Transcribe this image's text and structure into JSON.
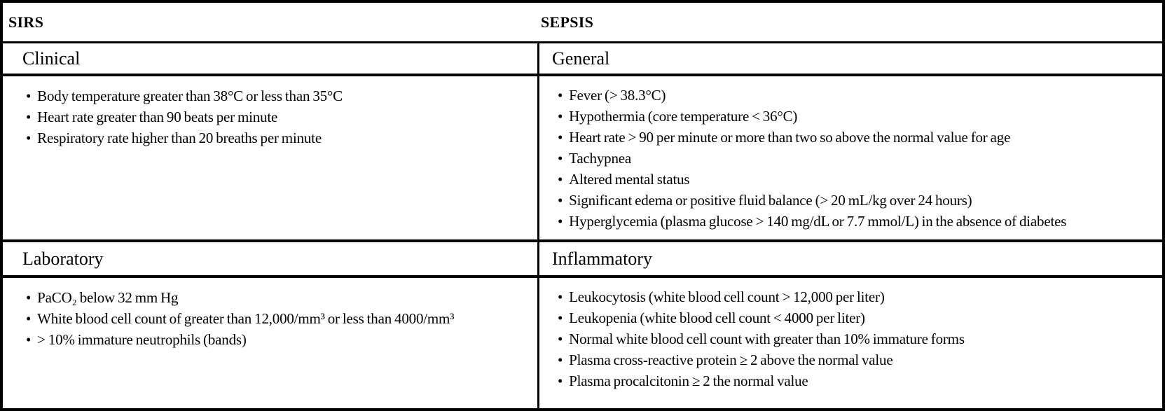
{
  "colors": {
    "border": "#000000",
    "background": "#ffffff",
    "text": "#000000"
  },
  "bullet_icon": "•",
  "header": {
    "sirs": "SIRS",
    "sepsis": "SEPSIS"
  },
  "sirs": {
    "clinical": {
      "title": "Clinical",
      "items": [
        "Body temperature greater than 38°C or less than 35°C",
        "Heart rate greater than 90 beats per minute",
        "Respiratory rate higher than 20 breaths per minute"
      ]
    },
    "laboratory": {
      "title": "Laboratory",
      "items": [
        "PaCO₂ below 32 mm Hg",
        "White blood cell count of greater than 12,000/mm³ or less than 4000/mm³",
        "> 10% immature neutrophils (bands)"
      ]
    }
  },
  "sepsis": {
    "general": {
      "title": "General",
      "items": [
        "Fever (> 38.3°C)",
        "Hypothermia (core temperature < 36°C)",
        "Heart rate > 90 per minute or more than two so above the normal value for age",
        "Tachypnea",
        "Altered mental status",
        "Significant edema or positive fluid balance (> 20 mL/kg over 24 hours)",
        "Hyperglycemia (plasma glucose > 140 mg/dL or 7.7 mmol/L) in the absence of diabetes"
      ]
    },
    "inflammatory": {
      "title": "Inflammatory",
      "items": [
        "Leukocytosis (white blood cell count > 12,000 per liter)",
        "Leukopenia (white blood cell count < 4000 per liter)",
        "Normal white blood cell count with greater than 10% immature forms",
        "Plasma cross-reactive protein ≥ 2 above the normal value",
        "Plasma procalcitonin ≥ 2 the normal value"
      ]
    }
  }
}
